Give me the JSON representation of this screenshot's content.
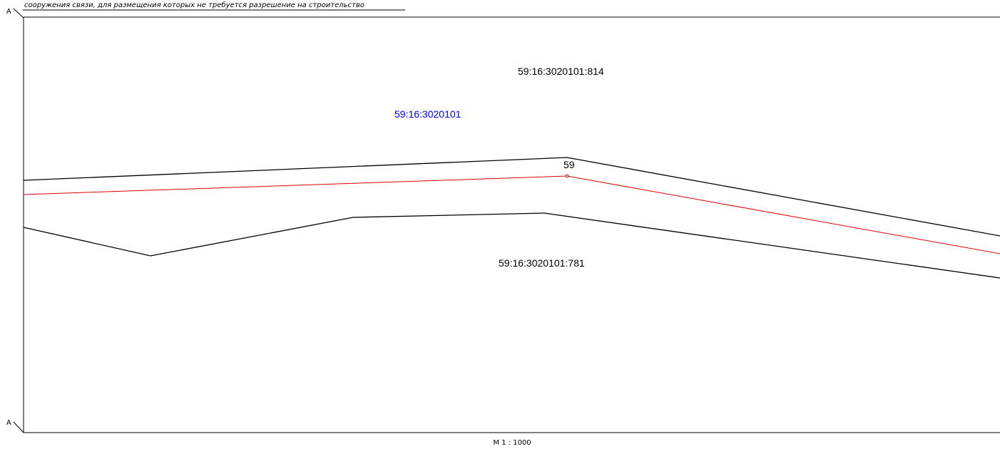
{
  "header": {
    "note": "сооружения связи, для размещения которых не требуется разрешение на строительство"
  },
  "frame": {
    "corner_top": "A",
    "corner_bottom": "A"
  },
  "labels": {
    "parcel_north": "59:16:3020101:814",
    "quarter": "59:16:3020101",
    "parcel_south": "59:16:3020101:781",
    "point": "59"
  },
  "footer": {
    "scale": "М 1 : 1000"
  },
  "colors": {
    "boundary": "#000000",
    "new_boundary": "#e00000",
    "quarter_label": "#0000ee"
  }
}
